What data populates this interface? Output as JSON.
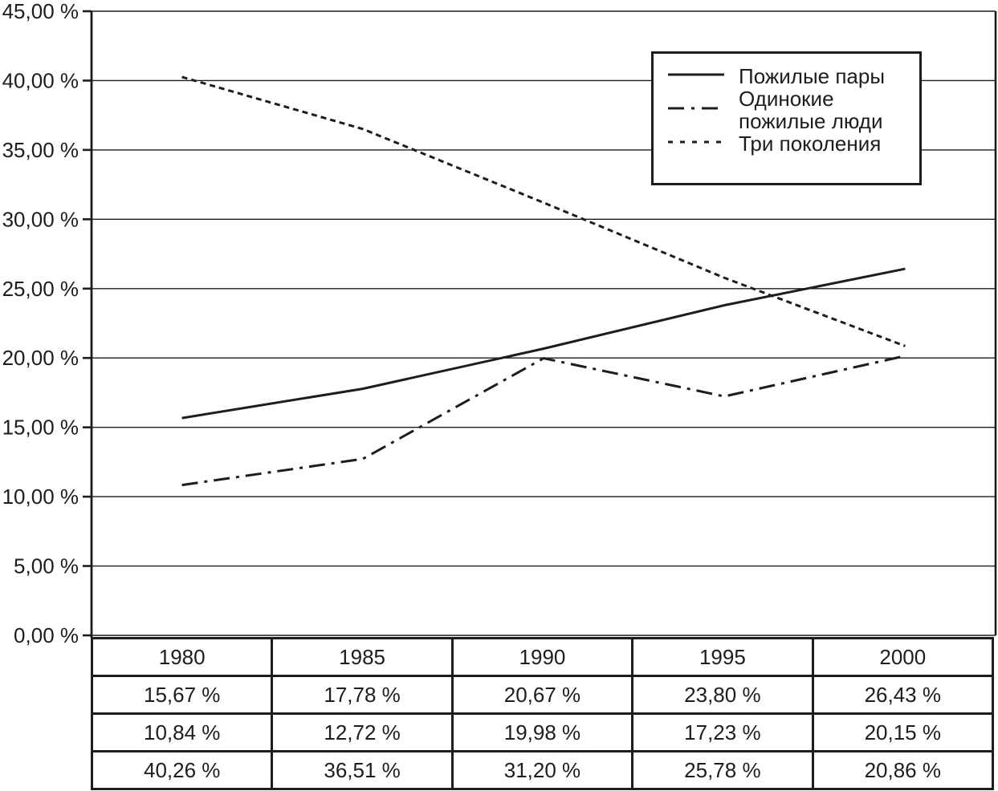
{
  "colors": {
    "line": "#1d1d1b",
    "grid": "#1d1d1b",
    "background": "#ffffff"
  },
  "chart_data": {
    "type": "line",
    "title": "",
    "xlabel": "",
    "ylabel": "",
    "grid": true,
    "legend_position": "top-right",
    "categories": [
      "1980",
      "1985",
      "1990",
      "1995",
      "2000"
    ],
    "ylim": [
      0,
      45
    ],
    "ytick_values": [
      0,
      5,
      10,
      15,
      20,
      25,
      30,
      35,
      40,
      45
    ],
    "ytick_labels": [
      "0,00 %",
      "5,00 %",
      "10,00 %",
      "15,00 %",
      "20,00 %",
      "25,00 %",
      "30,00 %",
      "35,00 %",
      "40,00 %",
      "45,00 %"
    ],
    "series": [
      {
        "name": "Пожилые пары",
        "legend_label": "Пожилые пары",
        "line_style": "solid",
        "values": [
          15.67,
          17.78,
          20.67,
          23.8,
          26.43
        ],
        "value_labels": [
          "15,67 %",
          "17,78 %",
          "20,67 %",
          "23,80 %",
          "26,43 %"
        ]
      },
      {
        "name": "Одинокие пожилые люди",
        "legend_label": "Одинокие\nпожилые люди",
        "line_style": "dash-dot",
        "values": [
          10.84,
          12.72,
          19.98,
          17.23,
          20.15
        ],
        "value_labels": [
          "10,84 %",
          "12,72 %",
          "19,98 %",
          "17,23 %",
          "20,15 %"
        ]
      },
      {
        "name": "Три поколения",
        "legend_label": "Три поколения",
        "line_style": "dotted",
        "values": [
          40.26,
          36.51,
          31.2,
          25.78,
          20.86
        ],
        "value_labels": [
          "40,26 %",
          "36,51 %",
          "31,20 %",
          "25,78 %",
          "20,86 %"
        ]
      }
    ]
  }
}
